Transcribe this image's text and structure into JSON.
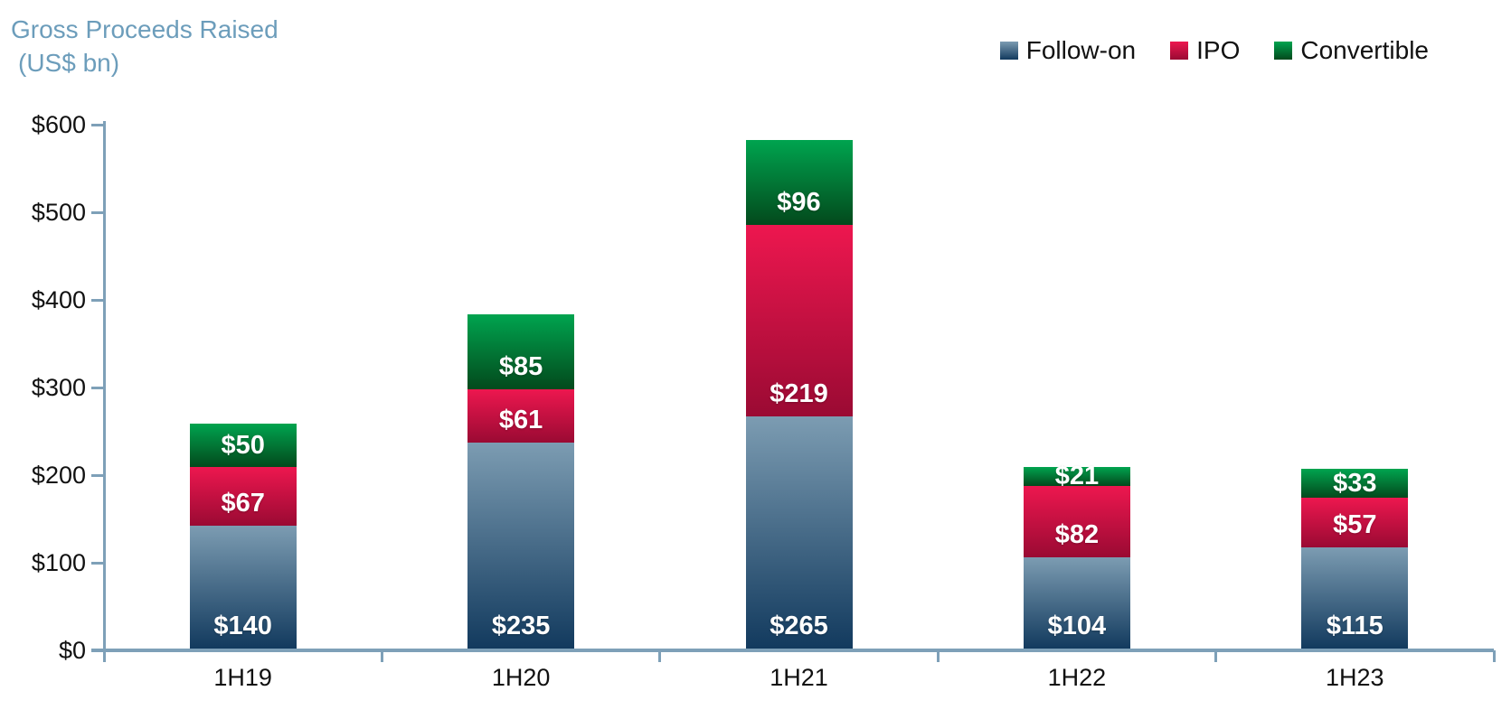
{
  "title": {
    "line1": "Gross Proceeds Raised",
    "line2": "(US$ bn)"
  },
  "legend": {
    "items": [
      "Follow-on",
      "IPO",
      "Convertible"
    ]
  },
  "chart_data": {
    "type": "bar",
    "stacked": true,
    "title": "Gross Proceeds Raised (US$ bn)",
    "categories": [
      "1H19",
      "1H20",
      "1H21",
      "1H22",
      "1H23"
    ],
    "series": [
      {
        "name": "Follow-on",
        "values": [
          140,
          235,
          265,
          104,
          115
        ]
      },
      {
        "name": "IPO",
        "values": [
          67,
          61,
          219,
          82,
          57
        ]
      },
      {
        "name": "Convertible",
        "values": [
          50,
          85,
          96,
          21,
          33
        ]
      }
    ],
    "ylim": [
      0,
      600
    ],
    "y_tick_step": 100,
    "y_tick_labels": [
      "$0",
      "$100",
      "$200",
      "$300",
      "$400",
      "$500",
      "$600"
    ],
    "data_label_prefix": "$",
    "data_labels_inside_base": true,
    "grid": false,
    "legend_position": "top-right"
  },
  "colors": {
    "title_text": "#6C9DBB",
    "axis_line": "#7EA0B8",
    "axis_text": "#111111",
    "bar_label_text": "#ffffff",
    "series_gradients": {
      "Follow-on": [
        "#7C9CB2",
        "#123A5E"
      ],
      "IPO": [
        "#ED174F",
        "#9A0A33"
      ],
      "Convertible": [
        "#00A44F",
        "#03491C"
      ]
    }
  }
}
